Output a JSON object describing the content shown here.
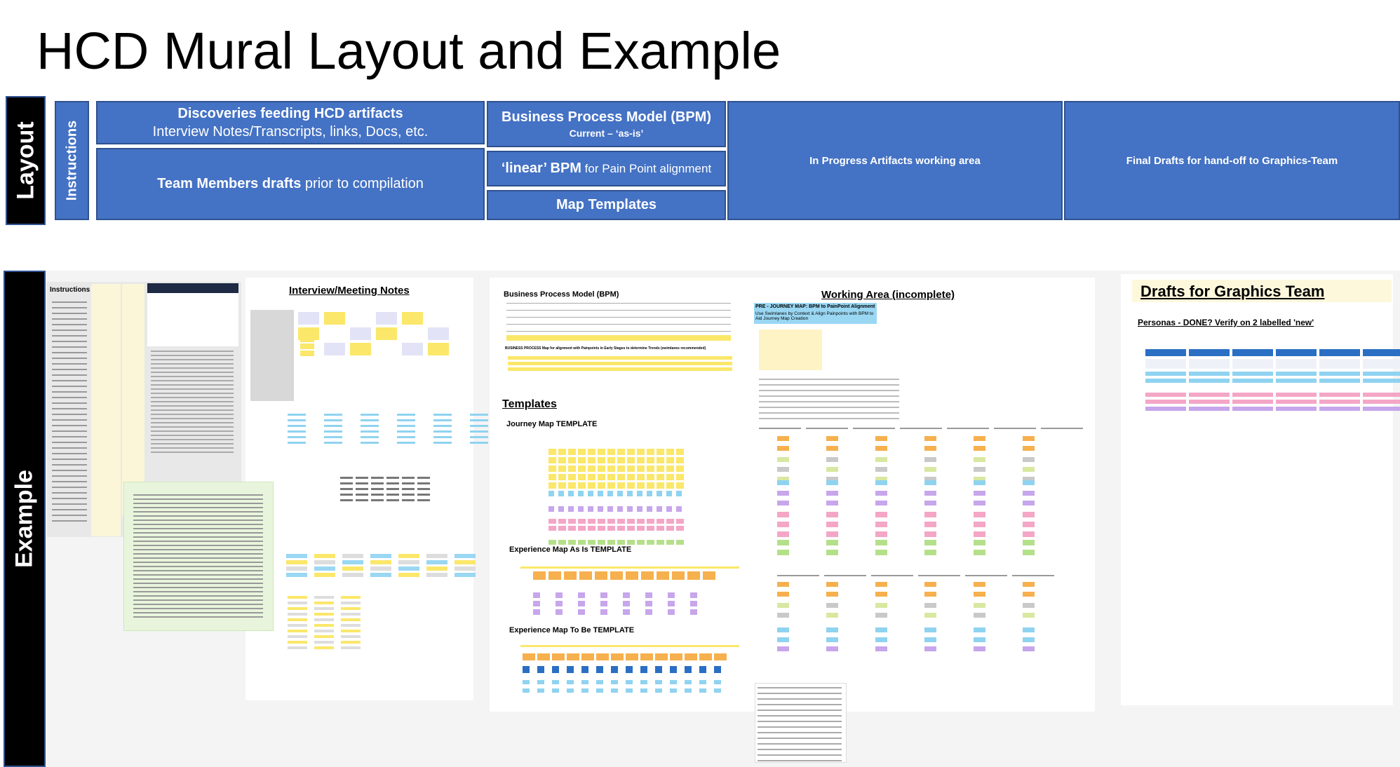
{
  "title": "HCD Mural Layout and Example",
  "layout": {
    "label": "Layout",
    "instructions": "Instructions",
    "discoveries": {
      "heading": "Discoveries feeding HCD artifacts",
      "sub": "Interview Notes/Transcripts, links, Docs, etc."
    },
    "team_drafts": {
      "bold": "Team Members drafts",
      "rest": " prior to compilation"
    },
    "bpm": {
      "heading": "Business Process Model (BPM)",
      "sub": "Current – ‘as-is’"
    },
    "linear_bpm": {
      "bold": "‘linear’ BPM",
      "rest": " for Pain Point alignment"
    },
    "map_templates": "Map Templates",
    "in_progress": "In Progress Artifacts working area",
    "final_drafts": "Final Drafts for hand-off to Graphics-Team"
  },
  "example": {
    "label": "Example",
    "instructions": "Instructions",
    "interview_notes": "Interview/Meeting Notes",
    "bpm": "Business Process Model (BPM)",
    "bpm_map": "BUSINESS PROCESS Map for alignment with Painpoints in Early Stages to determine Trends (swimlanes recommended)",
    "templates": "Templates",
    "journey_template": "Journey Map TEMPLATE",
    "exp_as_is": "Experience Map As Is TEMPLATE",
    "exp_to_be": "Experience Map To Be TEMPLATE",
    "working_area": "Working Area (incomplete)",
    "pre_journey": "PRE - JOURNEY MAP:  BPM to PainPoint Alignment",
    "pre_journey_note": "Use Swimlanes by Context & Align Painpoints with BPM to Aid Journey Map Creation",
    "drafts": "Drafts for Graphics Team",
    "personas": "Personas - DONE? Verify on 2 labelled 'new'"
  }
}
